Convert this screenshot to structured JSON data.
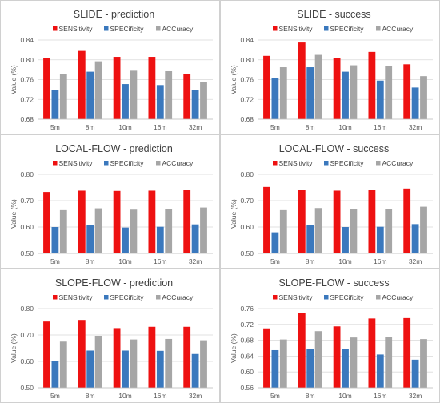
{
  "chart_data": [
    {
      "type": "bar",
      "title": "SLIDE - prediction",
      "ylabel": "Value (%)",
      "categories": [
        "5m",
        "8m",
        "10m",
        "16m",
        "32m"
      ],
      "ylim": [
        0.68,
        0.84
      ],
      "yticks": [
        "0.68",
        "0.72",
        "0.76",
        "0.80",
        "0.84"
      ],
      "legend_position": "top",
      "grid": true,
      "series": [
        {
          "name": "SENSitivity",
          "color": "#ee1111",
          "values": [
            0.803,
            0.818,
            0.806,
            0.806,
            0.771
          ]
        },
        {
          "name": "SPECificity",
          "color": "#3a78bd",
          "values": [
            0.739,
            0.776,
            0.751,
            0.749,
            0.739
          ]
        },
        {
          "name": "ACCuracy",
          "color": "#a6a6a6",
          "values": [
            0.771,
            0.797,
            0.778,
            0.777,
            0.755
          ]
        }
      ]
    },
    {
      "type": "bar",
      "title": "SLIDE - success",
      "ylabel": "Value (%)",
      "categories": [
        "5m",
        "8m",
        "10m",
        "16m",
        "32m"
      ],
      "ylim": [
        0.68,
        0.84
      ],
      "yticks": [
        "0.68",
        "0.72",
        "0.76",
        "0.80",
        "0.84"
      ],
      "legend_position": "top",
      "grid": true,
      "series": [
        {
          "name": "SENSitivity",
          "color": "#ee1111",
          "values": [
            0.808,
            0.835,
            0.804,
            0.816,
            0.791
          ]
        },
        {
          "name": "SPECificity",
          "color": "#3a78bd",
          "values": [
            0.764,
            0.785,
            0.776,
            0.758,
            0.744
          ]
        },
        {
          "name": "ACCuracy",
          "color": "#a6a6a6",
          "values": [
            0.785,
            0.81,
            0.789,
            0.787,
            0.767
          ]
        }
      ]
    },
    {
      "type": "bar",
      "title": "LOCAL-FLOW - prediction",
      "ylabel": "Value (%)",
      "categories": [
        "5m",
        "8m",
        "10m",
        "16m",
        "32m"
      ],
      "ylim": [
        0.5,
        0.8
      ],
      "yticks": [
        "0.50",
        "0.60",
        "0.70",
        "0.80"
      ],
      "legend_position": "top",
      "grid": true,
      "series": [
        {
          "name": "SENSitivity",
          "color": "#ee1111",
          "values": [
            0.733,
            0.738,
            0.737,
            0.738,
            0.74
          ]
        },
        {
          "name": "SPECificity",
          "color": "#3a78bd",
          "values": [
            0.6,
            0.607,
            0.598,
            0.601,
            0.61
          ]
        },
        {
          "name": "ACCuracy",
          "color": "#a6a6a6",
          "values": [
            0.664,
            0.671,
            0.666,
            0.668,
            0.674
          ]
        }
      ]
    },
    {
      "type": "bar",
      "title": "LOCAL-FLOW - success",
      "ylabel": "Value (%)",
      "categories": [
        "5m",
        "8m",
        "10m",
        "16m",
        "32m"
      ],
      "ylim": [
        0.5,
        0.8
      ],
      "yticks": [
        "0.50",
        "0.60",
        "0.70",
        "0.80"
      ],
      "legend_position": "top",
      "grid": true,
      "series": [
        {
          "name": "SENSitivity",
          "color": "#ee1111",
          "values": [
            0.752,
            0.74,
            0.738,
            0.741,
            0.746
          ]
        },
        {
          "name": "SPECificity",
          "color": "#3a78bd",
          "values": [
            0.58,
            0.608,
            0.6,
            0.601,
            0.611
          ]
        },
        {
          "name": "ACCuracy",
          "color": "#a6a6a6",
          "values": [
            0.664,
            0.672,
            0.667,
            0.668,
            0.677
          ]
        }
      ]
    },
    {
      "type": "bar",
      "title": "SLOPE-FLOW - prediction",
      "ylabel": "Value (%)",
      "categories": [
        "5m",
        "8m",
        "10m",
        "16m",
        "32m"
      ],
      "ylim": [
        0.5,
        0.8
      ],
      "yticks": [
        "0.50",
        "0.60",
        "0.70",
        "0.80"
      ],
      "legend_position": "top",
      "grid": true,
      "series": [
        {
          "name": "SENSitivity",
          "color": "#ee1111",
          "values": [
            0.751,
            0.757,
            0.726,
            0.731,
            0.731
          ]
        },
        {
          "name": "SPECificity",
          "color": "#3a78bd",
          "values": [
            0.603,
            0.641,
            0.641,
            0.64,
            0.628
          ]
        },
        {
          "name": "ACCuracy",
          "color": "#a6a6a6",
          "values": [
            0.675,
            0.697,
            0.683,
            0.685,
            0.68
          ]
        }
      ]
    },
    {
      "type": "bar",
      "title": "SLOPE-FLOW - success",
      "ylabel": "Value (%)",
      "categories": [
        "5m",
        "8m",
        "10m",
        "16m",
        "32m"
      ],
      "ylim": [
        0.56,
        0.76
      ],
      "yticks": [
        "0.56",
        "0.60",
        "0.64",
        "0.68",
        "0.72",
        "0.76"
      ],
      "legend_position": "top",
      "grid": true,
      "series": [
        {
          "name": "SENSitivity",
          "color": "#ee1111",
          "values": [
            0.71,
            0.748,
            0.715,
            0.735,
            0.736
          ]
        },
        {
          "name": "SPECificity",
          "color": "#3a78bd",
          "values": [
            0.655,
            0.658,
            0.658,
            0.644,
            0.631
          ]
        },
        {
          "name": "ACCuracy",
          "color": "#a6a6a6",
          "values": [
            0.682,
            0.703,
            0.687,
            0.689,
            0.683
          ]
        }
      ]
    }
  ]
}
